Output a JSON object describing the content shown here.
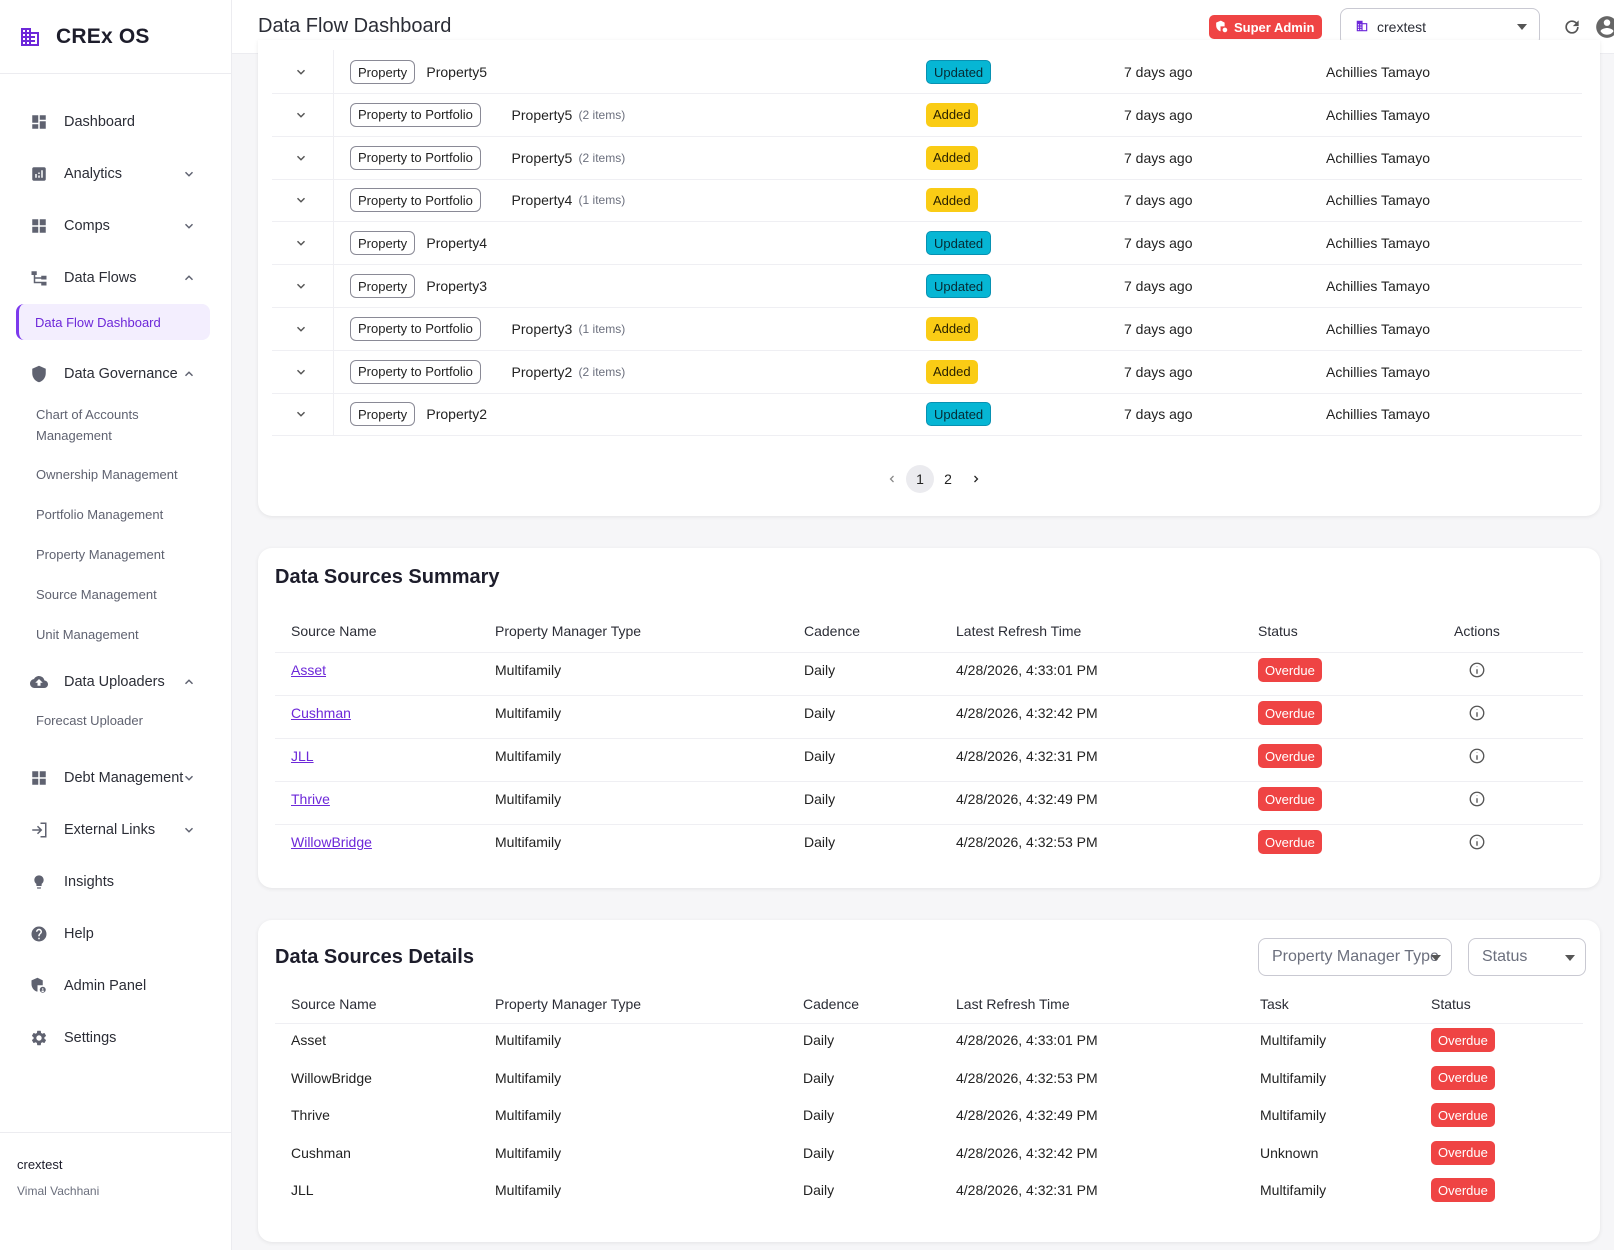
{
  "app": {
    "name": "CREx OS"
  },
  "header": {
    "title": "Data Flow Dashboard",
    "role_badge": "Super Admin",
    "org_select": "crextest"
  },
  "sidebar": {
    "items": [
      {
        "label": "Dashboard",
        "icon": "dashboard-icon"
      },
      {
        "label": "Analytics",
        "icon": "analytics-icon",
        "expandable": true
      },
      {
        "label": "Comps",
        "icon": "comps-icon",
        "expandable": true
      },
      {
        "label": "Data Flows",
        "icon": "data-flows-icon",
        "expandable": true,
        "expanded": true
      }
    ],
    "active_sub": "Data Flow Dashboard",
    "governance": {
      "label": "Data Governance",
      "subitems": [
        "Chart of Accounts Management",
        "Ownership Management",
        "Portfolio Management",
        "Property Management",
        "Source Management",
        "Unit Management"
      ]
    },
    "uploaders": {
      "label": "Data Uploaders",
      "subitems": [
        "Forecast Uploader"
      ]
    },
    "bottom_items": [
      {
        "label": "Debt Management",
        "expandable": true
      },
      {
        "label": "External Links",
        "expandable": true
      },
      {
        "label": "Insights"
      },
      {
        "label": "Help"
      },
      {
        "label": "Admin Panel"
      },
      {
        "label": "Settings"
      }
    ],
    "footer": {
      "org": "crextest",
      "user": "Vimal Vachhani"
    }
  },
  "activity": {
    "rows": [
      {
        "type": "Property",
        "name": "Property5",
        "count": "",
        "status": "Updated",
        "time": "7 days ago",
        "user": "Achillies Tamayo"
      },
      {
        "type": "Property to Portfolio",
        "name": "Property5",
        "count": "(2 items)",
        "status": "Added",
        "time": "7 days ago",
        "user": "Achillies Tamayo"
      },
      {
        "type": "Property to Portfolio",
        "name": "Property5",
        "count": "(2 items)",
        "status": "Added",
        "time": "7 days ago",
        "user": "Achillies Tamayo"
      },
      {
        "type": "Property to Portfolio",
        "name": "Property4",
        "count": "(1 items)",
        "status": "Added",
        "time": "7 days ago",
        "user": "Achillies Tamayo"
      },
      {
        "type": "Property",
        "name": "Property4",
        "count": "",
        "status": "Updated",
        "time": "7 days ago",
        "user": "Achillies Tamayo"
      },
      {
        "type": "Property",
        "name": "Property3",
        "count": "",
        "status": "Updated",
        "time": "7 days ago",
        "user": "Achillies Tamayo"
      },
      {
        "type": "Property to Portfolio",
        "name": "Property3",
        "count": "(1 items)",
        "status": "Added",
        "time": "7 days ago",
        "user": "Achillies Tamayo"
      },
      {
        "type": "Property to Portfolio",
        "name": "Property2",
        "count": "(2 items)",
        "status": "Added",
        "time": "7 days ago",
        "user": "Achillies Tamayo"
      },
      {
        "type": "Property",
        "name": "Property2",
        "count": "",
        "status": "Updated",
        "time": "7 days ago",
        "user": "Achillies Tamayo"
      }
    ],
    "pagination": {
      "pages": [
        "1",
        "2"
      ],
      "current": "1"
    }
  },
  "summary": {
    "title": "Data Sources Summary",
    "columns": [
      "Source Name",
      "Property Manager Type",
      "Cadence",
      "Latest Refresh Time",
      "Status",
      "Actions"
    ],
    "rows": [
      {
        "source": "Asset",
        "type": "Multifamily",
        "cadence": "Daily",
        "refresh": "4/28/2026, 4:33:01 PM",
        "status": "Overdue"
      },
      {
        "source": "Cushman",
        "type": "Multifamily",
        "cadence": "Daily",
        "refresh": "4/28/2026, 4:32:42 PM",
        "status": "Overdue"
      },
      {
        "source": "JLL",
        "type": "Multifamily",
        "cadence": "Daily",
        "refresh": "4/28/2026, 4:32:31 PM",
        "status": "Overdue"
      },
      {
        "source": "Thrive",
        "type": "Multifamily",
        "cadence": "Daily",
        "refresh": "4/28/2026, 4:32:49 PM",
        "status": "Overdue"
      },
      {
        "source": "WillowBridge",
        "type": "Multifamily",
        "cadence": "Daily",
        "refresh": "4/28/2026, 4:32:53 PM",
        "status": "Overdue"
      }
    ]
  },
  "details": {
    "title": "Data Sources Details",
    "filters": {
      "type_placeholder": "Property Manager Type",
      "status_placeholder": "Status"
    },
    "columns": [
      "Source Name",
      "Property Manager Type",
      "Cadence",
      "Last Refresh Time",
      "Task",
      "Status"
    ],
    "rows": [
      {
        "source": "Asset",
        "type": "Multifamily",
        "cadence": "Daily",
        "refresh": "4/28/2026, 4:33:01 PM",
        "task": "Multifamily",
        "status": "Overdue"
      },
      {
        "source": "WillowBridge",
        "type": "Multifamily",
        "cadence": "Daily",
        "refresh": "4/28/2026, 4:32:53 PM",
        "task": "Multifamily",
        "status": "Overdue"
      },
      {
        "source": "Thrive",
        "type": "Multifamily",
        "cadence": "Daily",
        "refresh": "4/28/2026, 4:32:49 PM",
        "task": "Multifamily",
        "status": "Overdue"
      },
      {
        "source": "Cushman",
        "type": "Multifamily",
        "cadence": "Daily",
        "refresh": "4/28/2026, 4:32:42 PM",
        "task": "Unknown",
        "status": "Overdue"
      },
      {
        "source": "JLL",
        "type": "Multifamily",
        "cadence": "Daily",
        "refresh": "4/28/2026, 4:32:31 PM",
        "task": "Multifamily",
        "status": "Overdue"
      }
    ]
  },
  "colors": {
    "accent": "#6d28d9",
    "danger": "#ef4444",
    "updated": "#06b6d4",
    "added": "#facc15"
  }
}
